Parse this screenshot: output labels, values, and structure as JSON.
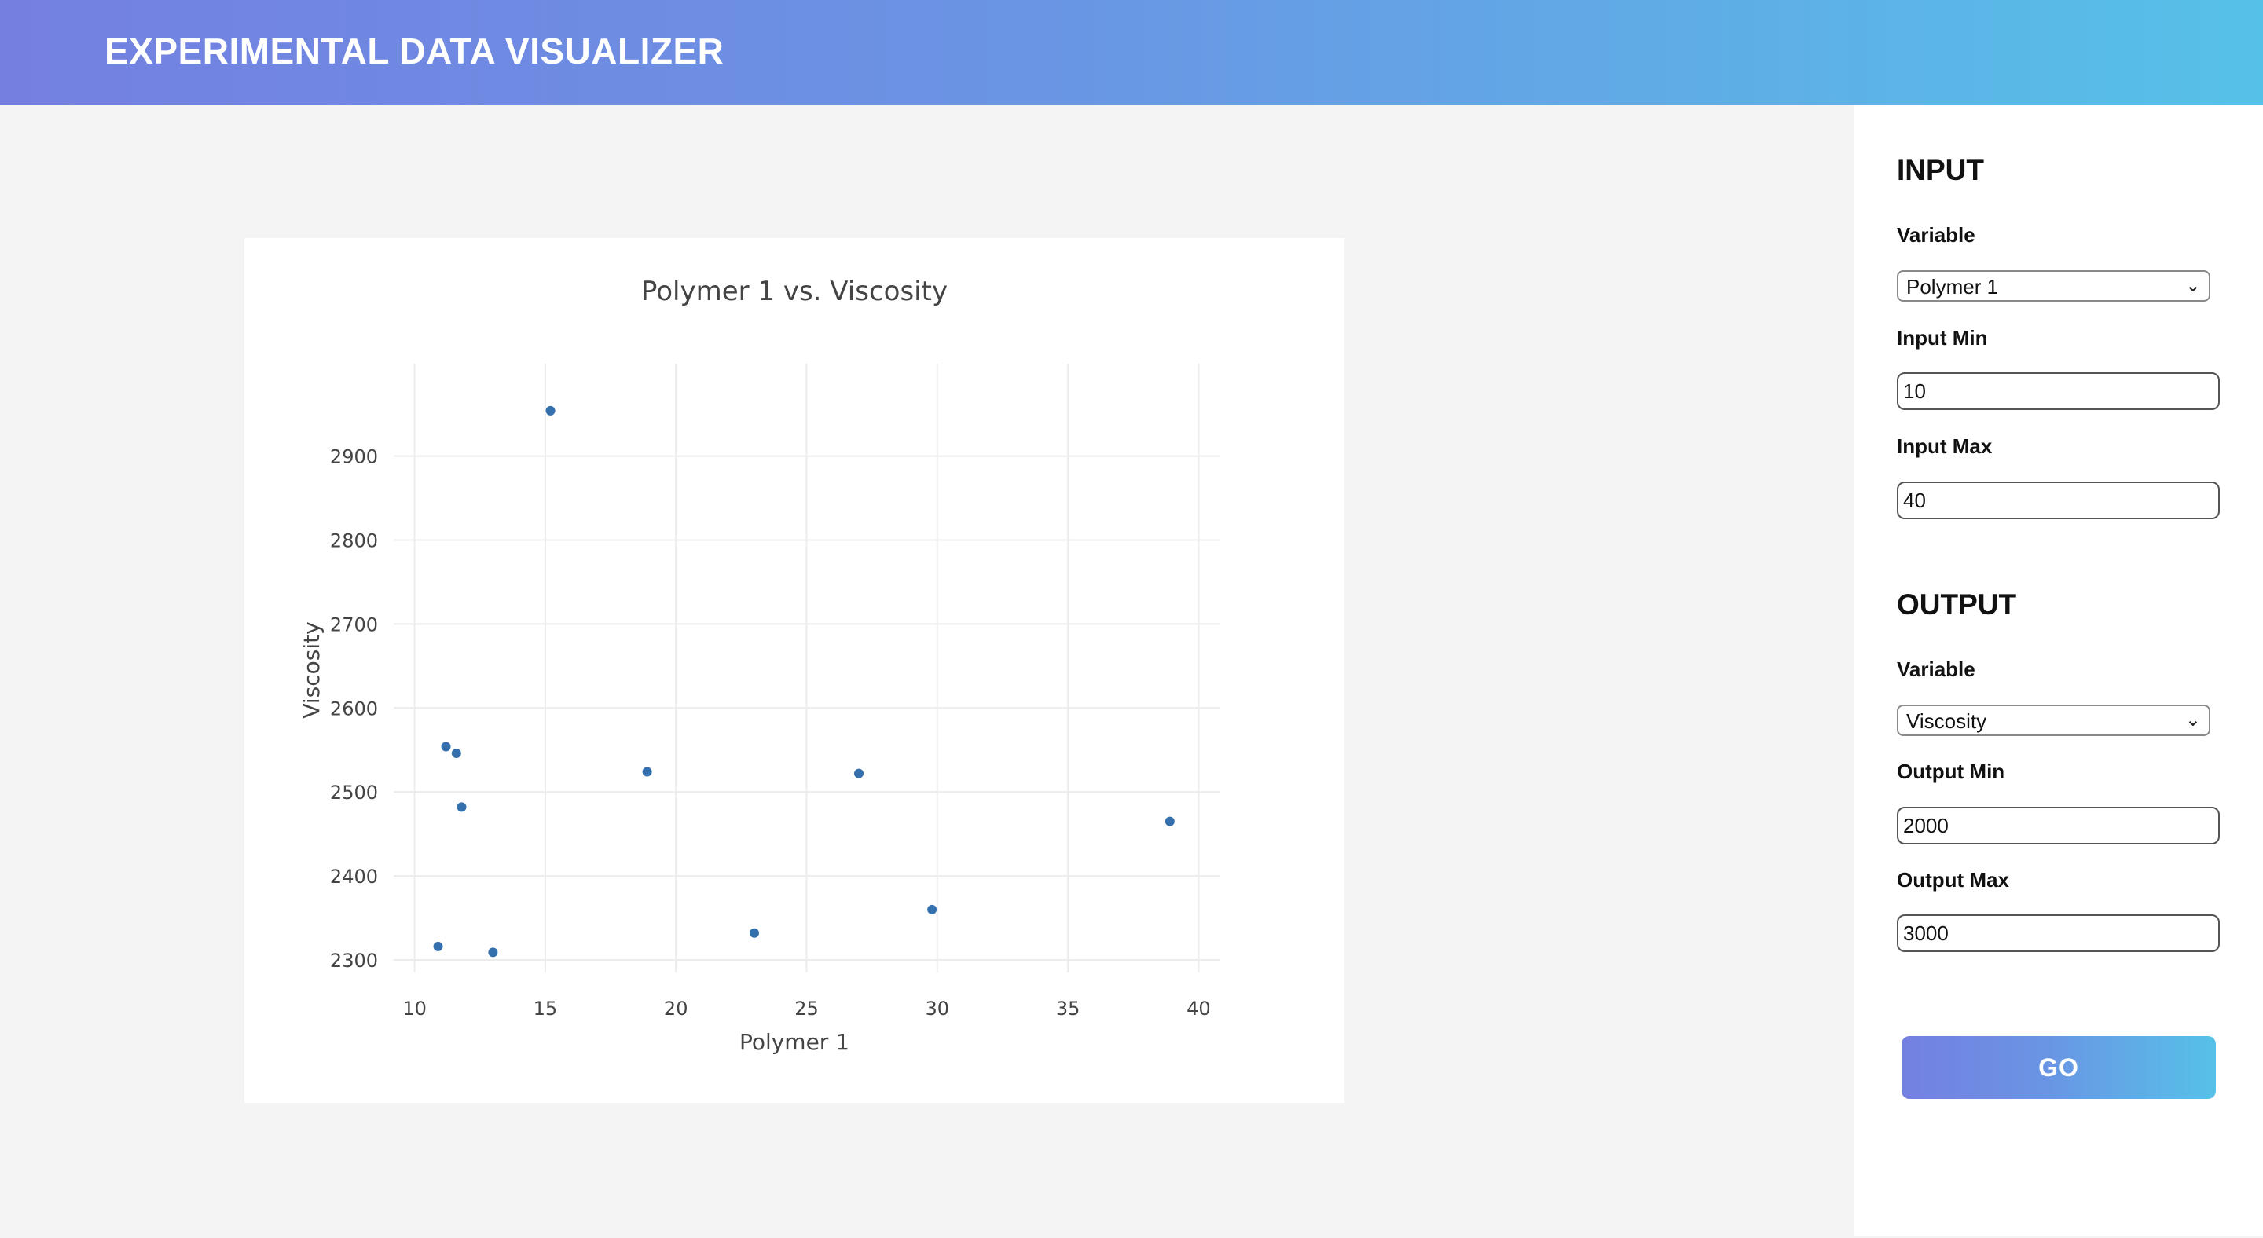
{
  "header": {
    "title": "EXPERIMENTAL DATA VISUALIZER"
  },
  "colors": {
    "header_gradient_start": "#7480e0",
    "header_gradient_end": "#56c1e8",
    "marker": "#3470ad",
    "grid": "#ececec"
  },
  "sidebar": {
    "input": {
      "section_title": "INPUT",
      "variable_label": "Variable",
      "variable_value": "Polymer 1",
      "min_label": "Input Min",
      "min_value": "10",
      "max_label": "Input Max",
      "max_value": "40"
    },
    "output": {
      "section_title": "OUTPUT",
      "variable_label": "Variable",
      "variable_value": "Viscosity",
      "min_label": "Output Min",
      "min_value": "2000",
      "max_label": "Output Max",
      "max_value": "3000"
    },
    "go_label": "GO",
    "chevron_icon": "chevron-down-icon"
  },
  "chart_data": {
    "type": "scatter",
    "title": "Polymer 1 vs. Viscosity",
    "xlabel": "Polymer 1",
    "ylabel": "Viscosity",
    "xlim": [
      9.2,
      40.8
    ],
    "ylim": [
      2285,
      3010
    ],
    "xticks": [
      10,
      15,
      20,
      25,
      30,
      35,
      40
    ],
    "yticks": [
      2300,
      2400,
      2500,
      2600,
      2700,
      2800,
      2900
    ],
    "grid": true,
    "points": [
      {
        "x": 15.2,
        "y": 2954
      },
      {
        "x": 11.2,
        "y": 2554
      },
      {
        "x": 11.6,
        "y": 2546
      },
      {
        "x": 11.8,
        "y": 2482
      },
      {
        "x": 18.9,
        "y": 2524
      },
      {
        "x": 27.0,
        "y": 2522
      },
      {
        "x": 38.9,
        "y": 2465
      },
      {
        "x": 29.8,
        "y": 2360
      },
      {
        "x": 23.0,
        "y": 2332
      },
      {
        "x": 10.9,
        "y": 2316
      },
      {
        "x": 13.0,
        "y": 2309
      }
    ]
  }
}
